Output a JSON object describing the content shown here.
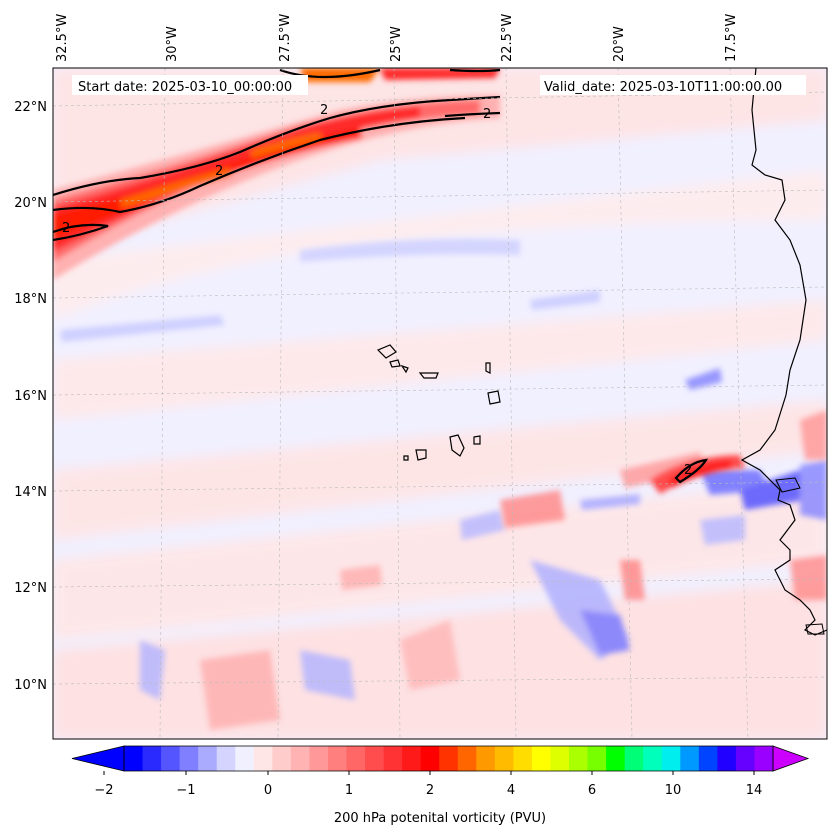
{
  "map": {
    "start_date_text": "Start date: 2025-03-10_00:00:00",
    "valid_date_text": "Valid_date: 2025-03-10T11:00:00.00",
    "lon_labels": [
      "32.5°W",
      "30°W",
      "27.5°W",
      "25°W",
      "22.5°W",
      "20°W",
      "17.5°W"
    ],
    "lat_labels": [
      "22°N",
      "20°N",
      "18°N",
      "16°N",
      "14°N",
      "12°N",
      "10°N"
    ],
    "contour_label": "2",
    "region": {
      "lon_min": -33.0,
      "lon_max": -15.5,
      "lat_min": 8.9,
      "lat_max": 22.8
    },
    "contour_level_pvu": 2
  },
  "colorbar": {
    "label": "200 hPa potenital vorticity (PVU)",
    "tick_labels": [
      "−2",
      "−1",
      "0",
      "1",
      "2",
      "4",
      "6",
      "10",
      "14"
    ],
    "extend": "both",
    "colors": [
      "#0000ff",
      "#2a2aff",
      "#5555ff",
      "#7f7fff",
      "#aaaaff",
      "#d4d4ff",
      "#f0f0ff",
      "#ffe6e6",
      "#ffcccc",
      "#ffb3b3",
      "#ff9999",
      "#ff7f7f",
      "#ff6666",
      "#ff4c4c",
      "#ff3333",
      "#ff1a1a",
      "#ff0000",
      "#ff3300",
      "#ff6600",
      "#ff9900",
      "#ffbb00",
      "#ffdd00",
      "#ffff00",
      "#ddff00",
      "#aaff00",
      "#77ff00",
      "#00ff00",
      "#00ff77",
      "#00ffbb",
      "#00eeee",
      "#0099ff",
      "#0044ff",
      "#2200ff",
      "#6600ff",
      "#9900ff"
    ],
    "under_color": "#0000ff",
    "over_color": "#cc00ff"
  }
}
